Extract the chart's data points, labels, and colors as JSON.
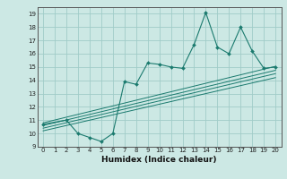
{
  "title": "",
  "xlabel": "Humidex (Indice chaleur)",
  "bg_color": "#cce8e4",
  "grid_color": "#a0ccc8",
  "line_color": "#1a7a6e",
  "xlim": [
    -0.5,
    20.5
  ],
  "ylim": [
    9,
    19.5
  ],
  "xticks": [
    0,
    1,
    2,
    3,
    4,
    5,
    6,
    7,
    8,
    9,
    10,
    11,
    12,
    13,
    14,
    15,
    16,
    17,
    18,
    19,
    20
  ],
  "yticks": [
    9,
    10,
    11,
    12,
    13,
    14,
    15,
    16,
    17,
    18,
    19
  ],
  "series1_x": [
    0,
    2,
    3,
    4,
    5,
    6,
    7,
    8,
    9,
    10,
    11,
    12,
    13,
    14,
    15,
    16,
    17,
    18,
    19,
    20
  ],
  "series1_y": [
    10.7,
    11.0,
    10.0,
    9.7,
    9.4,
    10.0,
    13.9,
    13.7,
    15.3,
    15.2,
    15.0,
    14.9,
    16.7,
    19.1,
    16.5,
    16.0,
    18.0,
    16.2,
    14.9,
    15.0
  ],
  "line1_x": [
    0,
    20
  ],
  "line1_y": [
    10.8,
    15.05
  ],
  "line2_x": [
    0,
    20
  ],
  "line2_y": [
    10.6,
    14.75
  ],
  "line3_x": [
    0,
    20
  ],
  "line3_y": [
    10.4,
    14.5
  ],
  "line4_x": [
    0,
    20
  ],
  "line4_y": [
    10.2,
    14.2
  ]
}
